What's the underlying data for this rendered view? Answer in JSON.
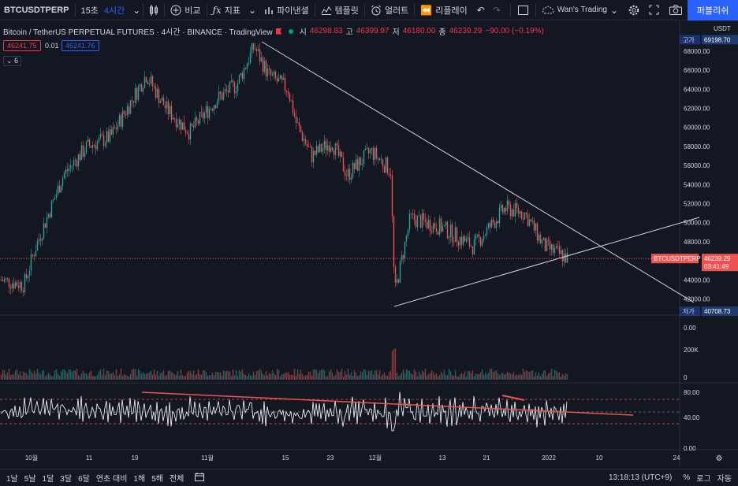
{
  "toolbar": {
    "symbol": "BTCUSDTPERP",
    "interval_1": "15초",
    "interval_2": "4시간",
    "compare": "비교",
    "indicators": "지표",
    "financials": "파이낸셜",
    "templates": "템플릿",
    "alert": "얼러트",
    "replay": "리플레이",
    "layout_name": "Wan's Trading",
    "publish": "퍼블리쉬"
  },
  "legend": {
    "title": "Bitcoin / TetherUS PERPETUAL FUTURES · 4시간 · BINANCE · TradingView",
    "open_label": "시",
    "open": "46298.83",
    "high_label": "고",
    "high": "46399.97",
    "low_label": "저",
    "low": "46180.00",
    "close_label": "종",
    "close": "46239.29",
    "change": "−90.00 (−0.19%)",
    "sell_price": "46241.75",
    "spread": "0.01",
    "buy_price": "46241.76",
    "collapse_count": "6"
  },
  "price_axis": {
    "currency": "USDT",
    "ticks": [
      "68000.00",
      "66000.00",
      "64000.00",
      "62000.00",
      "60000.00",
      "58000.00",
      "56000.00",
      "54000.00",
      "52000.00",
      "50000.00",
      "48000.00",
      "44000.00",
      "42000.00"
    ],
    "high_tag_label": "고가",
    "high_tag_value": "69198.70",
    "low_tag_label": "저가",
    "low_tag_value": "40708.73",
    "symbol_tag": "BTCUSDTPERP",
    "last_price": "46239.29",
    "countdown": "03:41:49"
  },
  "volume_axis": {
    "ticks": [
      "0.00",
      "200K",
      "0"
    ]
  },
  "rsi_axis": {
    "ticks": [
      "80.00",
      "40.00",
      "0.00"
    ]
  },
  "time_axis": {
    "ticks": [
      "10월",
      "11",
      "19",
      "11월",
      "15",
      "23",
      "12월",
      "13",
      "21",
      "2022",
      "10",
      "24"
    ]
  },
  "bottombar": {
    "ranges": [
      "1날",
      "5날",
      "1달",
      "3달",
      "6달",
      "연초 대비",
      "1해",
      "5해",
      "전체"
    ],
    "clock": "13:18:13 (UTC+9)",
    "percent": "%",
    "log": "로그",
    "auto": "자동"
  },
  "colors": {
    "background": "#131722",
    "up": "#26a69a",
    "down": "#ef5350",
    "accent": "#2962ff"
  },
  "icons": {
    "candles": "candles-icon",
    "compare": "plus-circle-icon",
    "indicators": "fx-icon",
    "financials": "bars-icon",
    "templates": "templates-icon",
    "alert": "alarm-icon",
    "replay": "rewind-icon",
    "undo": "undo-icon",
    "redo": "redo-icon",
    "fullscreen": "fullscreen-icon",
    "settings": "gear-icon",
    "snapshot": "camera-icon"
  }
}
